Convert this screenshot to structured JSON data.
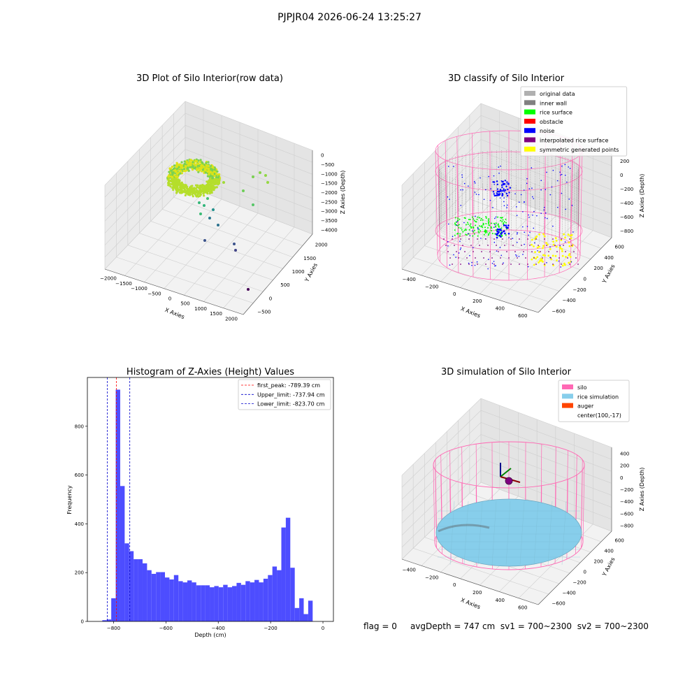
{
  "figure": {
    "suptitle": "PJPJR04 2026-06-24 13:25:27",
    "status": {
      "flag": "flag = 0",
      "avg_depth": "avgDepth = 747 cm",
      "sv1": "sv1 = 700~2300",
      "sv2": "sv2 = 700~2300"
    }
  },
  "colors": {
    "bars": "#4d4dff",
    "first_peak_line": "#ff0000",
    "limit_lines": "#0000cc",
    "silo": "#ff69b4",
    "rice_simulation": "#87ceeb",
    "auger": "#ff4500",
    "inner_wall": "#808080",
    "rice_surface": "#00ff00",
    "noise": "#0000ff",
    "interpolated": "#800080",
    "symmetric": "#ffff00",
    "original": "#b0b0b0"
  },
  "chart_data": [
    {
      "type": "scatter",
      "projection": "3d",
      "title": "3D Plot of Silo Interior(row data)",
      "xlabel": "X Axies",
      "ylabel": "Y Axies",
      "zlabel": "Z Axies (Depth)",
      "xticks": [
        "−2000",
        "−1500",
        "−1000",
        "−500",
        "0",
        "500",
        "1000",
        "1500",
        "2000"
      ],
      "yticks": [
        "−500",
        "0",
        "500",
        "1000",
        "1500",
        "2000"
      ],
      "zticks": [
        "0",
        "−500",
        "−1000",
        "−1500",
        "−2000",
        "−2500",
        "−3000",
        "−3500",
        "−4000"
      ],
      "xlim": [
        -2000,
        2000
      ],
      "ylim": [
        -500,
        2000
      ],
      "zlim": [
        -4000,
        0
      ],
      "colormap": "viridis",
      "grid": true
    },
    {
      "type": "scatter",
      "projection": "3d",
      "title": "3D classify of Silo Interior",
      "xlabel": "X Axies",
      "ylabel": "Y Axies",
      "zlabel": "Z Axies (Depth)",
      "xticks": [
        "−400",
        "−200",
        "0",
        "200",
        "400",
        "600"
      ],
      "yticks": [
        "−600",
        "−400",
        "−200",
        "0",
        "200",
        "400",
        "600"
      ],
      "zticks": [
        "200",
        "0",
        "−200",
        "−400",
        "−600",
        "−800"
      ],
      "xlim": [
        -500,
        700
      ],
      "ylim": [
        -600,
        600
      ],
      "zlim": [
        -900,
        300
      ],
      "legend": [
        "original data",
        "inner wall",
        "rice surface",
        "obstacle",
        "noise",
        "interpolated rice surface",
        "symmetric generated points"
      ],
      "legend_colors": [
        "#b0b0b0",
        "#808080",
        "#00ff00",
        "#ff0000",
        "#0000ff",
        "#800080",
        "#ffff00"
      ],
      "legend_position": "top-right",
      "grid": true
    },
    {
      "type": "bar",
      "title": "Histogram of Z-Axies (Height) Values",
      "xlabel": "Depth (cm)",
      "ylabel": "Frequency",
      "xlim": [
        -900,
        40
      ],
      "ylim": [
        0,
        1000
      ],
      "xticks": [
        -800,
        -600,
        -400,
        -200,
        0
      ],
      "xtick_labels": [
        "−800",
        "−600",
        "−400",
        "−200",
        "0"
      ],
      "yticks": [
        0,
        200,
        400,
        600,
        800
      ],
      "bin_start": -843,
      "bin_width": 17.1,
      "values": [
        5,
        8,
        95,
        950,
        555,
        320,
        288,
        255,
        255,
        238,
        210,
        195,
        202,
        202,
        180,
        172,
        190,
        165,
        160,
        168,
        160,
        148,
        148,
        148,
        140,
        145,
        140,
        150,
        140,
        145,
        158,
        150,
        165,
        160,
        170,
        160,
        175,
        190,
        225,
        210,
        385,
        425,
        220,
        55,
        95,
        30,
        85
      ],
      "vlines": [
        {
          "label": "first_peak: -789.39 cm",
          "x": -789.39,
          "color": "#ff0000"
        },
        {
          "label": "Upper_limit: -737.94 cm",
          "x": -737.94,
          "color": "#0000cc"
        },
        {
          "label": "Lower_limit: -823.70 cm",
          "x": -823.7,
          "color": "#0000cc"
        }
      ],
      "legend_position": "top-right"
    },
    {
      "type": "surface",
      "projection": "3d",
      "title": "3D simulation of Silo Interior",
      "xlabel": "X Axies",
      "ylabel": "Y Axies",
      "zlabel": "Z Axies (Depth)",
      "xticks": [
        "−400",
        "−200",
        "0",
        "200",
        "400",
        "600"
      ],
      "yticks": [
        "−600",
        "−400",
        "−200",
        "0",
        "200",
        "400",
        "600"
      ],
      "zticks": [
        "400",
        "200",
        "0",
        "−200",
        "−400",
        "−600",
        "−800"
      ],
      "xlim": [
        -500,
        700
      ],
      "ylim": [
        -600,
        600
      ],
      "zlim": [
        -900,
        500
      ],
      "legend": [
        "silo",
        "rice simulation",
        "auger",
        "center(100,-17)"
      ],
      "legend_colors": [
        "#ff69b4",
        "#87ceeb",
        "#ff4500",
        ""
      ],
      "legend_position": "top-right",
      "grid": true
    }
  ]
}
